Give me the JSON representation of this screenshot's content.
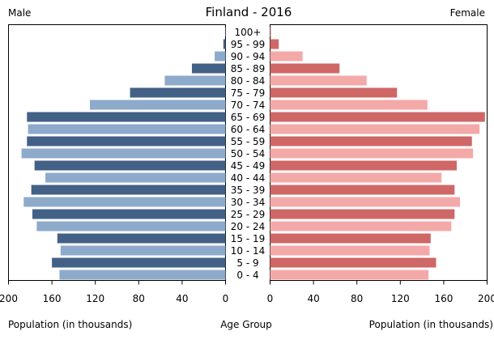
{
  "chart_data": {
    "type": "bar",
    "subtype": "population-pyramid",
    "title": "Finland - 2016",
    "left_label": "Male",
    "right_label": "Female",
    "xlabel_left": "Population (in thousands)",
    "xlabel_center": "Age Group",
    "xlabel_right": "Population (in thousands)",
    "xlim": [
      0,
      200
    ],
    "xticks": [
      200,
      160,
      120,
      80,
      40,
      0
    ],
    "xticks_right": [
      0,
      40,
      80,
      120,
      160,
      200
    ],
    "categories": [
      "100+",
      "95 - 99",
      "90 - 94",
      "85 - 89",
      "80 - 84",
      "75 - 79",
      "70 - 74",
      "65 - 69",
      "60 - 64",
      "55 - 59",
      "50 - 54",
      "45 - 49",
      "40 - 44",
      "35 - 39",
      "30 - 34",
      "25 - 29",
      "20 - 24",
      "15 - 19",
      "10 - 14",
      "5 - 9",
      "0 - 4"
    ],
    "series": [
      {
        "name": "Male",
        "colors": [
          "#8eaacb",
          "#436187"
        ],
        "values": [
          0.3,
          2,
          10,
          31,
          56,
          88,
          125,
          183,
          182,
          183,
          188,
          176,
          166,
          179,
          186,
          178,
          174,
          155,
          152,
          160,
          153
        ]
      },
      {
        "name": "Female",
        "colors": [
          "#f4a9a9",
          "#cf6767"
        ],
        "values": [
          1,
          8,
          30,
          64,
          89,
          117,
          145,
          198,
          193,
          186,
          187,
          172,
          158,
          170,
          175,
          170,
          167,
          148,
          147,
          153,
          146
        ]
      }
    ]
  }
}
